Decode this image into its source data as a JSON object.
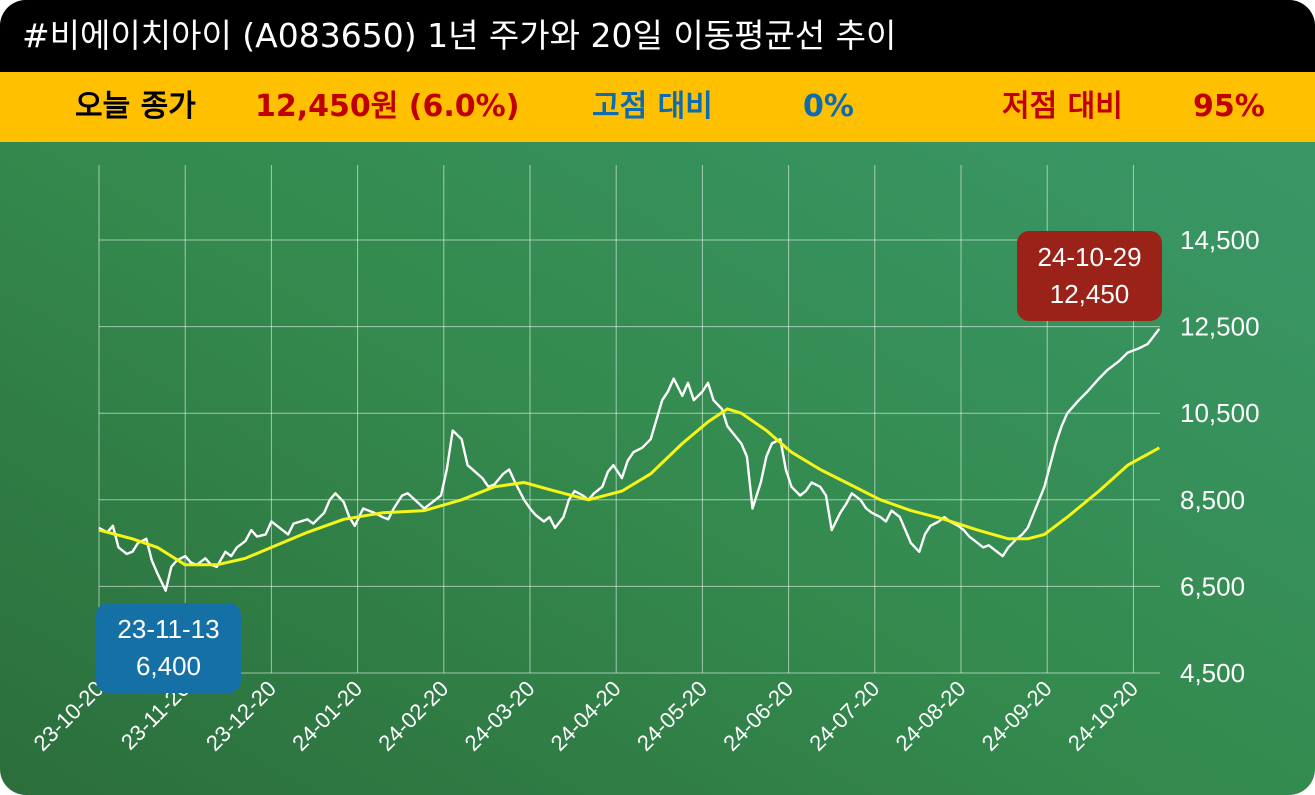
{
  "header": {
    "title": "#비에이치아이 (A083650) 1년 주가와 20일 이동평균선 추이"
  },
  "stats": {
    "close_label": "오늘 종가",
    "close_value": "12,450원 (6.0%)",
    "high_label": "고점 대비",
    "high_value": "0%",
    "low_label": "저점 대비",
    "low_value": "95%"
  },
  "colors": {
    "title_bg": "#000000",
    "stats_bg": "#ffc000",
    "price_line": "#ffffff",
    "ma_line": "#f5f518",
    "low_badge": "#1570a6",
    "high_badge": "#9a2218",
    "close_text": "#c00000",
    "high_text": "#0e6bb0",
    "low_text": "#c00000"
  },
  "chart_data": {
    "type": "line",
    "x_ticks": [
      "23-10-20",
      "23-11-20",
      "23-12-20",
      "24-01-20",
      "24-02-20",
      "24-03-20",
      "24-04-20",
      "24-05-20",
      "24-06-20",
      "24-07-20",
      "24-08-20",
      "24-09-20",
      "24-10-20"
    ],
    "y_ticks": [
      "4,500",
      "6,500",
      "8,500",
      "10,500",
      "12,500",
      "14,500"
    ],
    "ylim": [
      4500,
      14500
    ],
    "grid": true,
    "series": [
      {
        "key": "price",
        "points": [
          [
            "2023-10-20",
            7850
          ],
          [
            "2023-10-23",
            7750
          ],
          [
            "2023-10-25",
            7900
          ],
          [
            "2023-10-27",
            7400
          ],
          [
            "2023-10-30",
            7250
          ],
          [
            "2023-11-01",
            7300
          ],
          [
            "2023-11-03",
            7500
          ],
          [
            "2023-11-06",
            7600
          ],
          [
            "2023-11-08",
            7100
          ],
          [
            "2023-11-10",
            6800
          ],
          [
            "2023-11-13",
            6400
          ],
          [
            "2023-11-15",
            6950
          ],
          [
            "2023-11-17",
            7100
          ],
          [
            "2023-11-20",
            7200
          ],
          [
            "2023-11-22",
            7050
          ],
          [
            "2023-11-24",
            7000
          ],
          [
            "2023-11-27",
            7150
          ],
          [
            "2023-11-29",
            7000
          ],
          [
            "2023-12-01",
            6950
          ],
          [
            "2023-12-04",
            7300
          ],
          [
            "2023-12-06",
            7200
          ],
          [
            "2023-12-08",
            7400
          ],
          [
            "2023-12-11",
            7550
          ],
          [
            "2023-12-13",
            7800
          ],
          [
            "2023-12-15",
            7650
          ],
          [
            "2023-12-18",
            7700
          ],
          [
            "2023-12-20",
            8000
          ],
          [
            "2023-12-22",
            7900
          ],
          [
            "2023-12-26",
            7700
          ],
          [
            "2023-12-28",
            7950
          ],
          [
            "2024-01-02",
            8050
          ],
          [
            "2024-01-04",
            7950
          ],
          [
            "2024-01-08",
            8200
          ],
          [
            "2024-01-10",
            8500
          ],
          [
            "2024-01-12",
            8650
          ],
          [
            "2024-01-15",
            8450
          ],
          [
            "2024-01-17",
            8100
          ],
          [
            "2024-01-19",
            7900
          ],
          [
            "2024-01-22",
            8300
          ],
          [
            "2024-01-24",
            8250
          ],
          [
            "2024-01-26",
            8200
          ],
          [
            "2024-01-29",
            8100
          ],
          [
            "2024-01-31",
            8050
          ],
          [
            "2024-02-02",
            8300
          ],
          [
            "2024-02-05",
            8600
          ],
          [
            "2024-02-07",
            8650
          ],
          [
            "2024-02-13",
            8300
          ],
          [
            "2024-02-15",
            8400
          ],
          [
            "2024-02-19",
            8600
          ],
          [
            "2024-02-21",
            9200
          ],
          [
            "2024-02-23",
            10100
          ],
          [
            "2024-02-26",
            9900
          ],
          [
            "2024-02-28",
            9300
          ],
          [
            "2024-03-04",
            9000
          ],
          [
            "2024-03-06",
            8800
          ],
          [
            "2024-03-08",
            8850
          ],
          [
            "2024-03-11",
            9100
          ],
          [
            "2024-03-13",
            9200
          ],
          [
            "2024-03-15",
            8900
          ],
          [
            "2024-03-18",
            8500
          ],
          [
            "2024-03-20",
            8300
          ],
          [
            "2024-03-22",
            8150
          ],
          [
            "2024-03-25",
            8000
          ],
          [
            "2024-03-27",
            8100
          ],
          [
            "2024-03-29",
            7850
          ],
          [
            "2024-04-01",
            8100
          ],
          [
            "2024-04-03",
            8500
          ],
          [
            "2024-04-05",
            8700
          ],
          [
            "2024-04-08",
            8600
          ],
          [
            "2024-04-10",
            8500
          ],
          [
            "2024-04-12",
            8650
          ],
          [
            "2024-04-15",
            8800
          ],
          [
            "2024-04-17",
            9150
          ],
          [
            "2024-04-19",
            9300
          ],
          [
            "2024-04-22",
            9000
          ],
          [
            "2024-04-24",
            9400
          ],
          [
            "2024-04-26",
            9600
          ],
          [
            "2024-04-29",
            9700
          ],
          [
            "2024-05-02",
            9900
          ],
          [
            "2024-05-06",
            10800
          ],
          [
            "2024-05-08",
            11000
          ],
          [
            "2024-05-10",
            11300
          ],
          [
            "2024-05-13",
            10900
          ],
          [
            "2024-05-15",
            11200
          ],
          [
            "2024-05-17",
            10800
          ],
          [
            "2024-05-20",
            11000
          ],
          [
            "2024-05-22",
            11200
          ],
          [
            "2024-05-24",
            10800
          ],
          [
            "2024-05-27",
            10600
          ],
          [
            "2024-05-29",
            10200
          ],
          [
            "2024-06-03",
            9800
          ],
          [
            "2024-06-05",
            9500
          ],
          [
            "2024-06-07",
            8300
          ],
          [
            "2024-06-10",
            8900
          ],
          [
            "2024-06-12",
            9500
          ],
          [
            "2024-06-14",
            9800
          ],
          [
            "2024-06-17",
            9900
          ],
          [
            "2024-06-19",
            9200
          ],
          [
            "2024-06-21",
            8800
          ],
          [
            "2024-06-24",
            8600
          ],
          [
            "2024-06-26",
            8700
          ],
          [
            "2024-06-28",
            8900
          ],
          [
            "2024-07-01",
            8800
          ],
          [
            "2024-07-03",
            8600
          ],
          [
            "2024-07-05",
            7800
          ],
          [
            "2024-07-08",
            8200
          ],
          [
            "2024-07-10",
            8400
          ],
          [
            "2024-07-12",
            8650
          ],
          [
            "2024-07-15",
            8500
          ],
          [
            "2024-07-17",
            8300
          ],
          [
            "2024-07-19",
            8200
          ],
          [
            "2024-07-22",
            8100
          ],
          [
            "2024-07-24",
            8000
          ],
          [
            "2024-07-26",
            8250
          ],
          [
            "2024-07-29",
            8100
          ],
          [
            "2024-07-31",
            7800
          ],
          [
            "2024-08-02",
            7500
          ],
          [
            "2024-08-05",
            7300
          ],
          [
            "2024-08-07",
            7700
          ],
          [
            "2024-08-09",
            7900
          ],
          [
            "2024-08-12",
            8000
          ],
          [
            "2024-08-14",
            8100
          ],
          [
            "2024-08-16",
            8000
          ],
          [
            "2024-08-19",
            7900
          ],
          [
            "2024-08-21",
            7800
          ],
          [
            "2024-08-23",
            7650
          ],
          [
            "2024-08-26",
            7500
          ],
          [
            "2024-08-28",
            7400
          ],
          [
            "2024-08-30",
            7450
          ],
          [
            "2024-09-02",
            7300
          ],
          [
            "2024-09-04",
            7200
          ],
          [
            "2024-09-06",
            7400
          ],
          [
            "2024-09-09",
            7600
          ],
          [
            "2024-09-11",
            7700
          ],
          [
            "2024-09-13",
            7850
          ],
          [
            "2024-09-19",
            8800
          ],
          [
            "2024-09-23",
            9800
          ],
          [
            "2024-09-25",
            10200
          ],
          [
            "2024-09-27",
            10500
          ],
          [
            "2024-10-01",
            10800
          ],
          [
            "2024-10-04",
            11000
          ],
          [
            "2024-10-08",
            11300
          ],
          [
            "2024-10-11",
            11500
          ],
          [
            "2024-10-15",
            11700
          ],
          [
            "2024-10-18",
            11900
          ],
          [
            "2024-10-22",
            12000
          ],
          [
            "2024-10-25",
            12100
          ],
          [
            "2024-10-29",
            12450
          ]
        ]
      },
      {
        "key": "ma20",
        "points": [
          [
            "2023-10-20",
            7800
          ],
          [
            "2023-11-01",
            7600
          ],
          [
            "2023-11-10",
            7400
          ],
          [
            "2023-11-20",
            7000
          ],
          [
            "2023-12-01",
            7000
          ],
          [
            "2023-12-11",
            7150
          ],
          [
            "2023-12-20",
            7400
          ],
          [
            "2024-01-02",
            7750
          ],
          [
            "2024-01-15",
            8050
          ],
          [
            "2024-01-29",
            8200
          ],
          [
            "2024-02-13",
            8250
          ],
          [
            "2024-02-26",
            8500
          ],
          [
            "2024-03-08",
            8800
          ],
          [
            "2024-03-18",
            8900
          ],
          [
            "2024-03-29",
            8700
          ],
          [
            "2024-04-10",
            8500
          ],
          [
            "2024-04-22",
            8700
          ],
          [
            "2024-05-02",
            9100
          ],
          [
            "2024-05-13",
            9800
          ],
          [
            "2024-05-22",
            10300
          ],
          [
            "2024-05-29",
            10600
          ],
          [
            "2024-06-03",
            10500
          ],
          [
            "2024-06-12",
            10100
          ],
          [
            "2024-06-21",
            9600
          ],
          [
            "2024-07-01",
            9200
          ],
          [
            "2024-07-10",
            8900
          ],
          [
            "2024-07-22",
            8500
          ],
          [
            "2024-08-02",
            8250
          ],
          [
            "2024-08-14",
            8050
          ],
          [
            "2024-08-26",
            7800
          ],
          [
            "2024-09-06",
            7600
          ],
          [
            "2024-09-13",
            7600
          ],
          [
            "2024-09-19",
            7700
          ],
          [
            "2024-09-27",
            8100
          ],
          [
            "2024-10-08",
            8700
          ],
          [
            "2024-10-18",
            9300
          ],
          [
            "2024-10-29",
            9700
          ]
        ]
      }
    ],
    "annotations": [
      {
        "date": "23-11-13",
        "value": "6,400"
      },
      {
        "date": "24-10-29",
        "value": "12,450"
      }
    ]
  }
}
